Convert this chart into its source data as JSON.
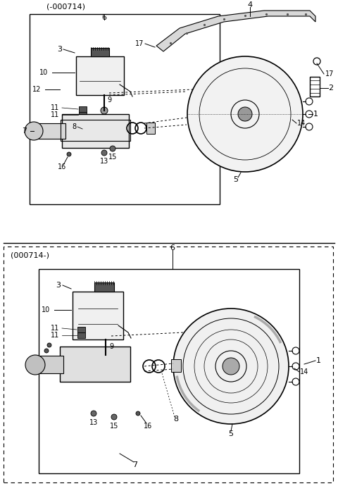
{
  "bg_color": "#ffffff",
  "line_color": "#000000",
  "gray_color": "#888888",
  "light_gray": "#cccccc",
  "label_fontsize": 7,
  "title_fontsize": 8
}
